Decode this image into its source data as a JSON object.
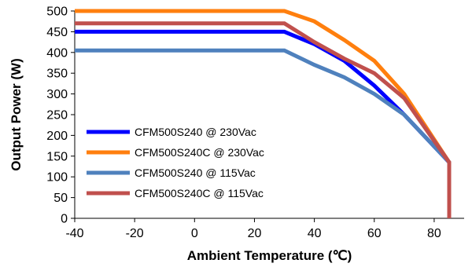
{
  "chart_data": {
    "type": "line",
    "xlabel": "Ambient  Temperature (℃)",
    "ylabel": "Output Power (W)",
    "xlim": [
      -40,
      90
    ],
    "ylim": [
      0,
      500
    ],
    "xticks": [
      -40,
      -20,
      0,
      20,
      40,
      60,
      80
    ],
    "yticks": [
      0,
      50,
      100,
      150,
      200,
      250,
      300,
      350,
      400,
      450,
      500
    ],
    "grid": false,
    "legend_position": "left",
    "series": [
      {
        "name": "CFM500S240 @ 230Vac",
        "color": "#0000ff",
        "points": [
          [
            -40,
            450
          ],
          [
            30,
            450
          ],
          [
            40,
            420
          ],
          [
            50,
            380
          ],
          [
            60,
            320
          ],
          [
            70,
            250
          ],
          [
            85,
            135
          ],
          [
            85,
            0
          ]
        ]
      },
      {
        "name": "CFM500S240C @ 230Vac",
        "color": "#ff7f0e",
        "points": [
          [
            -40,
            500
          ],
          [
            30,
            500
          ],
          [
            40,
            475
          ],
          [
            50,
            430
          ],
          [
            60,
            380
          ],
          [
            70,
            300
          ],
          [
            85,
            135
          ],
          [
            85,
            0
          ]
        ]
      },
      {
        "name": "CFM500S240 @ 115Vac",
        "color": "#4f81bd",
        "points": [
          [
            -40,
            405
          ],
          [
            30,
            405
          ],
          [
            40,
            370
          ],
          [
            50,
            340
          ],
          [
            60,
            300
          ],
          [
            70,
            250
          ],
          [
            85,
            135
          ],
          [
            85,
            0
          ]
        ]
      },
      {
        "name": "CFM500S240C @ 115Vac",
        "color": "#c0504d",
        "points": [
          [
            -40,
            470
          ],
          [
            30,
            470
          ],
          [
            40,
            425
          ],
          [
            50,
            385
          ],
          [
            60,
            350
          ],
          [
            70,
            290
          ],
          [
            85,
            135
          ],
          [
            85,
            0
          ]
        ]
      }
    ]
  }
}
